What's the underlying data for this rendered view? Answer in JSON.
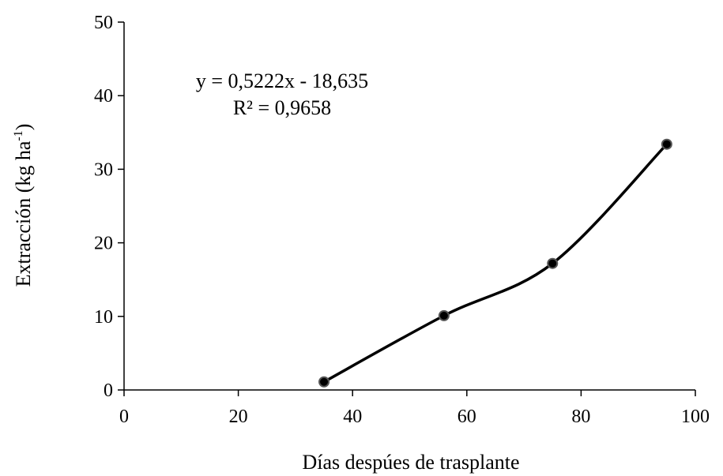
{
  "chart_data": {
    "type": "scatter",
    "xlabel": "Días despúes de trasplante",
    "ylabel": "Extracción (kg ha",
    "ylabel_superscript": "-1",
    "ylabel_suffix": ")",
    "xlim": [
      0,
      100
    ],
    "ylim": [
      0,
      50
    ],
    "x_ticks": [
      0,
      20,
      40,
      60,
      80,
      100
    ],
    "y_ticks": [
      0,
      10,
      20,
      30,
      40,
      50
    ],
    "grid": false,
    "smoothed_line": true,
    "series": [
      {
        "x": [
          35,
          56,
          75,
          95
        ],
        "y": [
          1.1,
          10.1,
          17.2,
          33.4
        ],
        "color": "#000000",
        "marker_color": "#000000"
      }
    ],
    "annotation": {
      "equation": "y = 0,5222x - 18,635",
      "r_squared": "R² = 0,9658"
    }
  }
}
